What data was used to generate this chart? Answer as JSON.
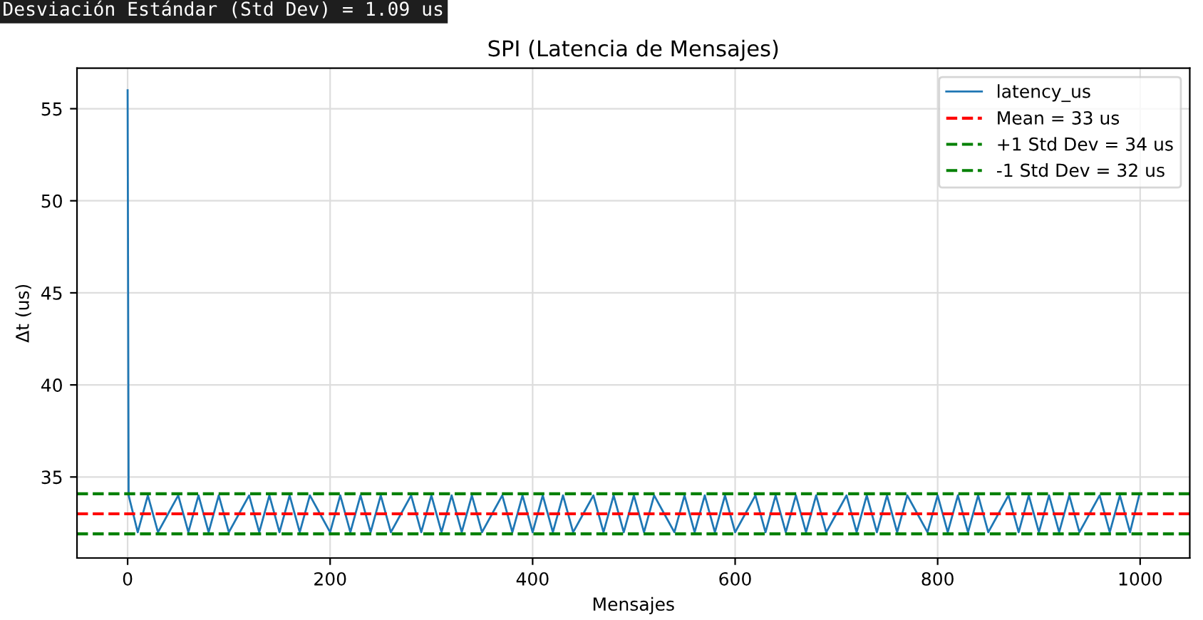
{
  "chart_data": {
    "type": "line",
    "title": "SPI (Latencia de Mensajes)",
    "xlabel": "Mensajes",
    "ylabel": "Δt (us)",
    "annotations": [
      "Desviación Estándar (Std Dev) = 1.09 us"
    ],
    "x": [
      0,
      1,
      10,
      20,
      30,
      40,
      50,
      60,
      70,
      80,
      90,
      100,
      110,
      120,
      130,
      140,
      150,
      160,
      170,
      180,
      190,
      200,
      210,
      220,
      230,
      240,
      250,
      260,
      270,
      280,
      290,
      300,
      310,
      320,
      330,
      340,
      350,
      360,
      370,
      380,
      390,
      400,
      410,
      420,
      430,
      440,
      450,
      460,
      470,
      480,
      490,
      500,
      510,
      520,
      530,
      540,
      550,
      560,
      570,
      580,
      590,
      600,
      610,
      620,
      630,
      640,
      650,
      660,
      670,
      680,
      690,
      700,
      710,
      720,
      730,
      740,
      750,
      760,
      770,
      780,
      790,
      800,
      810,
      820,
      830,
      840,
      850,
      860,
      870,
      880,
      890,
      900,
      910,
      920,
      930,
      940,
      950,
      960,
      970,
      980,
      990,
      999
    ],
    "series": [
      {
        "name": "latency_us",
        "color": "#1f77b4",
        "values": [
          56,
          34,
          32,
          34,
          32,
          33,
          34,
          32,
          34,
          32,
          34,
          32,
          33,
          34,
          32,
          34,
          32,
          34,
          32,
          34,
          33,
          32,
          34,
          32,
          34,
          32,
          34,
          32,
          33,
          34,
          32,
          34,
          32,
          34,
          32,
          34,
          32,
          33,
          34,
          32,
          34,
          32,
          34,
          32,
          34,
          32,
          33,
          34,
          32,
          34,
          32,
          34,
          32,
          34,
          33,
          32,
          34,
          32,
          34,
          32,
          34,
          32,
          33,
          34,
          32,
          34,
          32,
          34,
          32,
          34,
          32,
          33,
          34,
          32,
          34,
          32,
          34,
          32,
          34,
          33,
          32,
          34,
          32,
          34,
          32,
          34,
          32,
          33,
          34,
          32,
          34,
          32,
          34,
          32,
          34,
          32,
          33,
          34,
          32,
          34,
          32,
          34
        ]
      }
    ],
    "ref_lines": [
      {
        "axis": "y",
        "value": 33,
        "label": "Mean = 33 us",
        "color": "#ff0000",
        "line_style": "dashed"
      },
      {
        "axis": "y",
        "value": 34.09,
        "label": "+1 Std Dev = 34 us",
        "color": "#008000",
        "line_style": "dashed"
      },
      {
        "axis": "y",
        "value": 31.91,
        "label": "-1 Std Dev = 32 us",
        "color": "#008000",
        "line_style": "dashed"
      }
    ],
    "xlim": [
      -50,
      1049
    ],
    "ylim": [
      30.6,
      57.2
    ],
    "xticks": [
      0,
      200,
      400,
      600,
      800,
      1000
    ],
    "yticks": [
      35,
      40,
      45,
      50,
      55
    ],
    "grid": true,
    "legend": "top right",
    "marker": "none",
    "line_style": "solid"
  }
}
